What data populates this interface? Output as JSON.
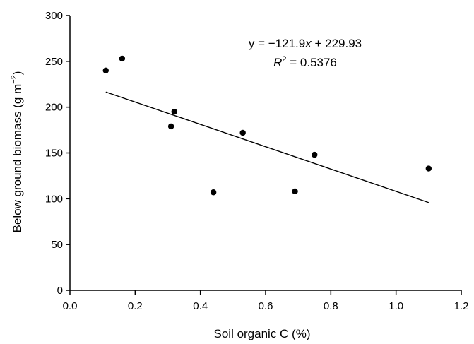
{
  "chart_data": {
    "type": "scatter",
    "xlabel": "Soil organic C (%)",
    "ylabel_main": "Below ground biomass (g m",
    "ylabel_sup": "−2",
    "ylabel_close": ")",
    "xlim": [
      0.0,
      1.2
    ],
    "ylim": [
      0,
      300
    ],
    "x_ticks": [
      0.0,
      0.2,
      0.4,
      0.6,
      0.8,
      1.0,
      1.2
    ],
    "x_tick_labels": [
      "0.0",
      "0.2",
      "0.4",
      "0.6",
      "0.8",
      "1.0",
      "1.2"
    ],
    "y_ticks": [
      0,
      50,
      100,
      150,
      200,
      250,
      300
    ],
    "y_tick_labels": [
      "0",
      "50",
      "100",
      "150",
      "200",
      "250",
      "300"
    ],
    "grid": false,
    "points": [
      {
        "x": 0.11,
        "y": 240
      },
      {
        "x": 0.16,
        "y": 253
      },
      {
        "x": 0.31,
        "y": 179
      },
      {
        "x": 0.32,
        "y": 195
      },
      {
        "x": 0.44,
        "y": 107
      },
      {
        "x": 0.53,
        "y": 172
      },
      {
        "x": 0.69,
        "y": 108
      },
      {
        "x": 0.75,
        "y": 148
      },
      {
        "x": 1.1,
        "y": 133
      }
    ],
    "trendline": {
      "slope": -121.9,
      "intercept": 229.93,
      "x_start": 0.11,
      "x_end": 1.1
    },
    "annotation": {
      "eq_prefix": "y = −121.9",
      "eq_var": "x",
      "eq_suffix": " + 229.93",
      "r2_var": "R",
      "r2_sup": "2",
      "r2_value": " = 0.5376"
    }
  }
}
